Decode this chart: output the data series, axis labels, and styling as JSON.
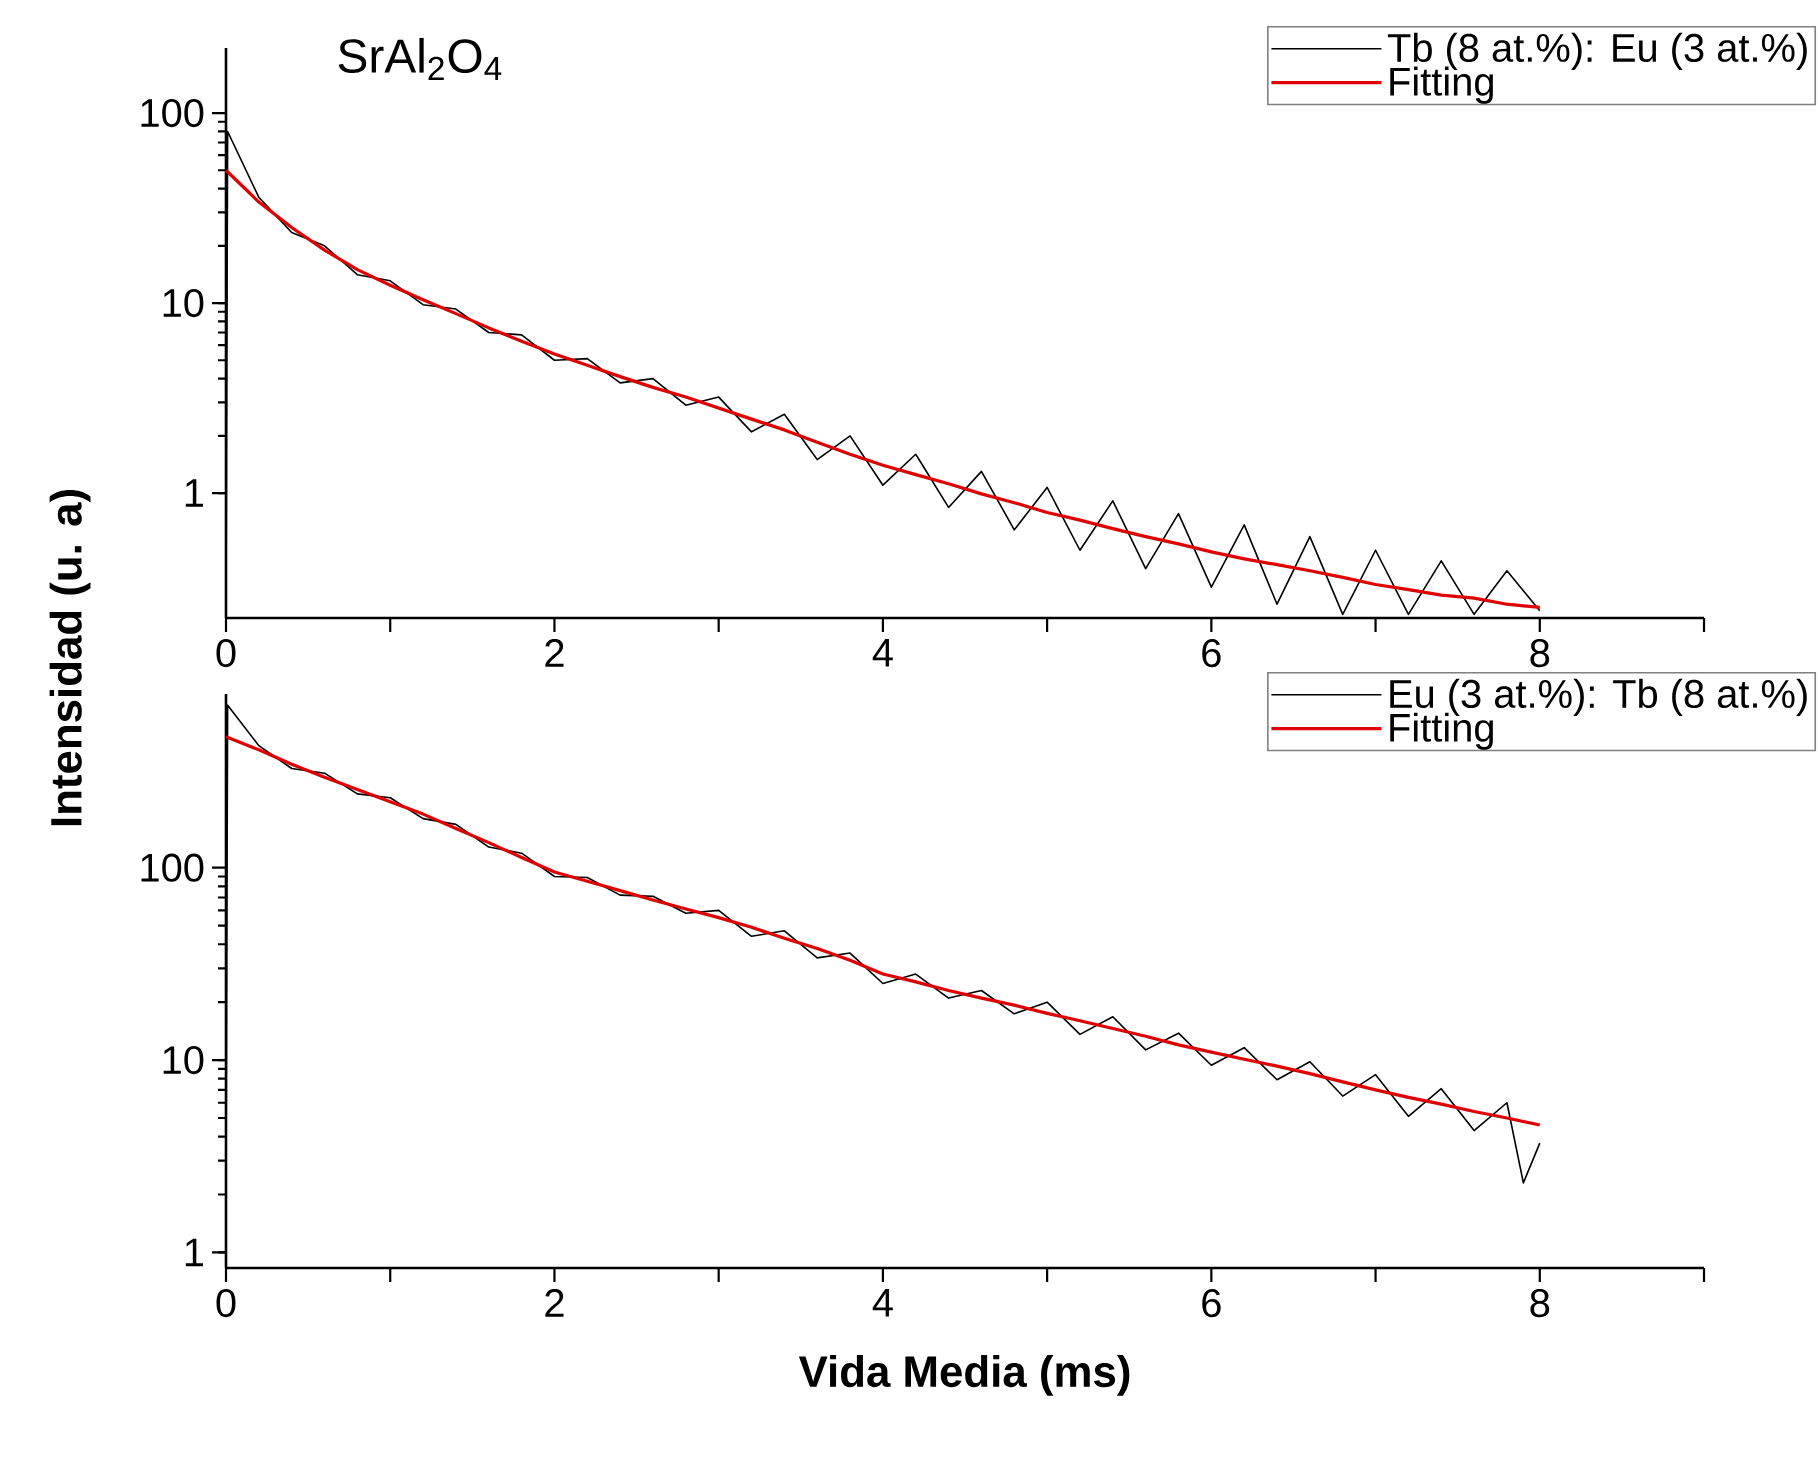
{
  "chart_data": [
    {
      "type": "line",
      "annotations": [
        "SrAl$_{2}$O$_{4}$"
      ],
      "ylabel": "Intensidad (u. a)",
      "log": "y",
      "legend": "top right",
      "marker": "none",
      "line_style": "solid",
      "xlim": [
        0,
        9
      ],
      "xticks": [
        0,
        {
          "value": 1,
          "label": null
        },
        2,
        {
          "value": 3,
          "label": null
        },
        4,
        {
          "value": 5,
          "label": null
        },
        6,
        {
          "value": 7,
          "label": null
        },
        8,
        {
          "value": 9,
          "label": null
        }
      ],
      "ylim": [
        0.22,
        220
      ],
      "yticks": [
        1,
        10,
        100
      ],
      "series": [
        {
          "name": "Tb (8 at.%): Eu (3 at.%)",
          "color": "#000000",
          "x": [
            0,
            0.01,
            0.2,
            0.4,
            0.6,
            0.8,
            1.0,
            1.2,
            1.4,
            1.6,
            1.8,
            2.0,
            2.2,
            2.4,
            2.6,
            2.8,
            3.0,
            3.2,
            3.4,
            3.6,
            3.8,
            4.0,
            4.2,
            4.4,
            4.6,
            4.8,
            5.0,
            5.2,
            5.4,
            5.6,
            5.8,
            6.0,
            6.2,
            6.4,
            6.6,
            6.8,
            7.0,
            7.2,
            7.4,
            7.6,
            7.8,
            8.0
          ],
          "values": [
            0.25,
            80,
            36,
            23.5,
            20,
            14.1,
            13.1,
            9.8,
            9.3,
            7.0,
            6.8,
            5.0,
            5.1,
            3.8,
            4.0,
            2.9,
            3.2,
            2.1,
            2.6,
            1.5,
            2.0,
            1.1,
            1.6,
            0.84,
            1.3,
            0.64,
            1.07,
            0.5,
            0.91,
            0.4,
            0.78,
            0.32,
            0.68,
            0.26,
            0.59,
            0.23,
            0.5,
            0.23,
            0.44,
            0.23,
            0.39,
            0.24
          ]
        },
        {
          "name": "Fitting",
          "color": "#e00000",
          "x": [
            0,
            0.2,
            0.4,
            0.6,
            0.8,
            1.0,
            1.2,
            1.4,
            1.6,
            1.8,
            2.0,
            2.2,
            2.4,
            2.6,
            2.8,
            3.0,
            3.2,
            3.4,
            3.6,
            3.8,
            4.0,
            4.2,
            4.4,
            4.6,
            4.8,
            5.0,
            5.2,
            5.4,
            5.6,
            5.8,
            6.0,
            6.2,
            6.4,
            6.6,
            6.8,
            7.0,
            7.2,
            7.4,
            7.6,
            7.8,
            8.0
          ],
          "values": [
            50,
            34,
            25,
            19,
            15,
            12.4,
            10.4,
            8.8,
            7.4,
            6.3,
            5.4,
            4.7,
            4.1,
            3.6,
            3.2,
            2.8,
            2.45,
            2.15,
            1.85,
            1.6,
            1.4,
            1.25,
            1.12,
            0.99,
            0.89,
            0.79,
            0.72,
            0.65,
            0.59,
            0.54,
            0.49,
            0.45,
            0.42,
            0.39,
            0.36,
            0.33,
            0.31,
            0.29,
            0.28,
            0.26,
            0.25
          ]
        }
      ]
    },
    {
      "type": "line",
      "xlabel": "Vida Media (ms)",
      "log": "y",
      "legend": "top right",
      "marker": "none",
      "line_style": "solid",
      "xlim": [
        0,
        9
      ],
      "xticks": [
        0,
        {
          "value": 1,
          "label": null
        },
        2,
        {
          "value": 3,
          "label": null
        },
        4,
        {
          "value": 5,
          "label": null
        },
        6,
        {
          "value": 7,
          "label": null
        },
        8,
        {
          "value": 9,
          "label": null
        }
      ],
      "ylim": [
        0.83,
        800
      ],
      "yticks": [
        1,
        10,
        100
      ],
      "series": [
        {
          "name": "Eu (3 at.%): Tb (8 at.%)",
          "color": "#000000",
          "x": [
            0,
            0.01,
            0.2,
            0.4,
            0.6,
            0.8,
            1.0,
            1.2,
            1.4,
            1.6,
            1.8,
            2.0,
            2.2,
            2.4,
            2.6,
            2.8,
            3.0,
            3.2,
            3.4,
            3.6,
            3.8,
            4.0,
            4.2,
            4.4,
            4.6,
            4.8,
            5.0,
            5.2,
            5.4,
            5.6,
            5.8,
            6.0,
            6.2,
            6.4,
            6.6,
            6.8,
            7.0,
            7.2,
            7.4,
            7.6,
            7.8,
            7.9,
            8.0
          ],
          "values": [
            2.5,
            700,
            431,
            328,
            310,
            242,
            231,
            180,
            168,
            128,
            119,
            90,
            89,
            72,
            71,
            58,
            60,
            44,
            47,
            34,
            36,
            25,
            28,
            21,
            23,
            17.4,
            20,
            13.6,
            16.8,
            11.3,
            13.8,
            9.4,
            11.6,
            7.9,
            9.8,
            6.5,
            8.4,
            5.1,
            7.1,
            4.3,
            6.0,
            2.3,
            3.7
          ]
        },
        {
          "name": "Fitting",
          "color": "#e00000",
          "x": [
            0,
            0.2,
            0.4,
            0.6,
            0.8,
            1.0,
            1.2,
            1.4,
            1.6,
            1.8,
            2.0,
            2.2,
            2.4,
            2.6,
            2.8,
            3.0,
            3.2,
            3.4,
            3.6,
            3.8,
            4.0,
            4.2,
            4.4,
            4.6,
            4.8,
            5.0,
            5.2,
            5.4,
            5.6,
            5.8,
            6.0,
            6.2,
            6.4,
            6.6,
            6.8,
            7.0,
            7.2,
            7.4,
            7.6,
            7.8,
            8.0
          ],
          "values": [
            480,
            410,
            345,
            295,
            255,
            220,
            190,
            160,
            135,
            113,
            95,
            85,
            76,
            68,
            61,
            55,
            49,
            43,
            38,
            33,
            28,
            25.5,
            23,
            21,
            19.3,
            17.5,
            16,
            14.6,
            13.3,
            12,
            11,
            10.1,
            9.3,
            8.5,
            7.7,
            7,
            6.4,
            5.9,
            5.4,
            5.0,
            4.6
          ]
        }
      ]
    }
  ]
}
